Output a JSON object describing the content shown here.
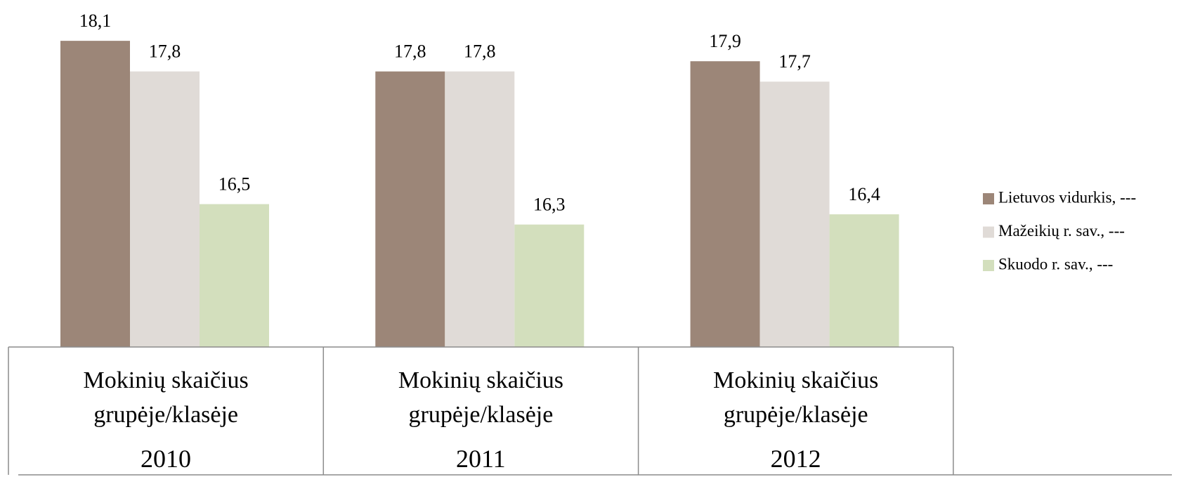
{
  "chart_data": {
    "type": "bar",
    "categories": [
      "Mokinių skaičius grupėje/klasėje",
      "Mokinių skaičius grupėje/klasėje",
      "Mokinių skaičius grupėje/klasėje"
    ],
    "category_groups": [
      "2010",
      "2011",
      "2012"
    ],
    "series": [
      {
        "name": "Lietuvos vidurkis, ---",
        "color": "#9c8678",
        "values": [
          18.1,
          17.8,
          17.9
        ],
        "value_labels": [
          "18,1",
          "17,8",
          "17,9"
        ]
      },
      {
        "name": "Mažeikių r. sav., ---",
        "color": "#e0dbd7",
        "values": [
          17.8,
          17.8,
          17.7
        ],
        "value_labels": [
          "17,8",
          "17,8",
          "17,7"
        ]
      },
      {
        "name": "Skuodo r. sav., ---",
        "color": "#d3dfbd",
        "values": [
          16.5,
          16.3,
          16.4
        ],
        "value_labels": [
          "16,5",
          "16,3",
          "16,4"
        ]
      }
    ],
    "ylim": [
      15.1,
      18.5
    ],
    "legend": "right"
  }
}
